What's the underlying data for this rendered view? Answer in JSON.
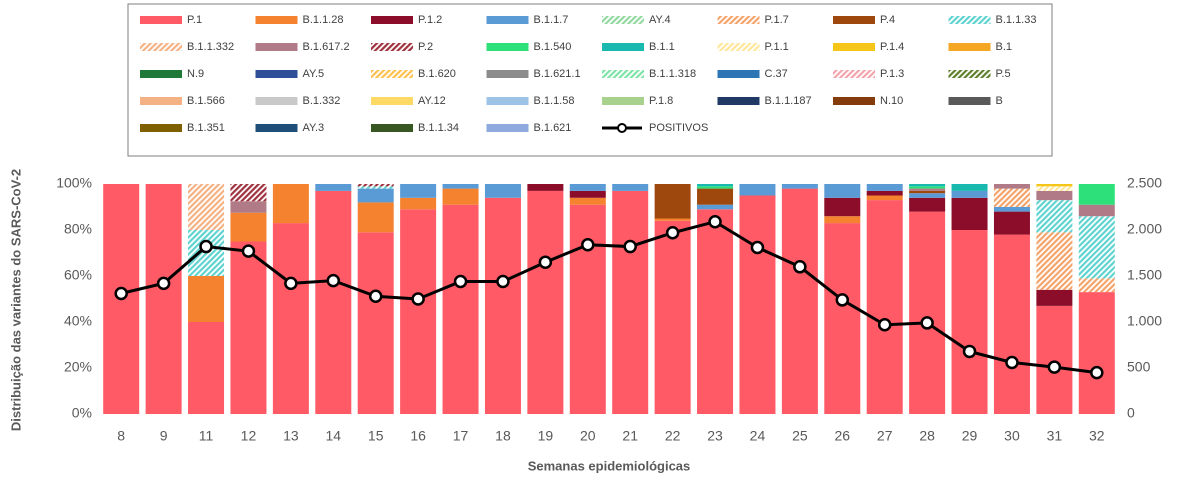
{
  "chart_data": {
    "type": "bar",
    "stacked": true,
    "y_title": "Distribuição das variantes do SARS-CoV-2",
    "x_title": "Semanas epidemiológicas",
    "categories": [
      "8",
      "9",
      "11",
      "12",
      "13",
      "14",
      "15",
      "16",
      "17",
      "18",
      "19",
      "20",
      "21",
      "22",
      "23",
      "24",
      "25",
      "26",
      "27",
      "28",
      "29",
      "30",
      "31",
      "32"
    ],
    "ylim": [
      0,
      100
    ],
    "yticks": [
      {
        "value": 0,
        "label": "0%"
      },
      {
        "value": 20,
        "label": "20%"
      },
      {
        "value": 40,
        "label": "40%"
      },
      {
        "value": 60,
        "label": "60%"
      },
      {
        "value": 80,
        "label": "80%"
      },
      {
        "value": 100,
        "label": "100%"
      }
    ],
    "y2lim": [
      0,
      2500
    ],
    "y2ticks": [
      0,
      500,
      {
        "value": 1000,
        "label": "1.000"
      },
      {
        "value": 1500,
        "label": "1.500"
      },
      {
        "value": 2000,
        "label": "2.000"
      },
      {
        "value": 2500,
        "label": "2.500"
      }
    ],
    "series": [
      {
        "name": "P.1",
        "color": "#ff5a65",
        "values": [
          100,
          100,
          40,
          75,
          83,
          97,
          79,
          89,
          91,
          94,
          97,
          91,
          97,
          84,
          89,
          95,
          98,
          83,
          93,
          88,
          80,
          78,
          47,
          53
        ]
      },
      {
        "name": "B.1.1.28",
        "color": "#f5822f",
        "values": [
          0,
          0,
          20,
          12.5,
          17,
          0,
          13,
          5,
          7,
          0,
          0,
          3,
          0,
          1,
          0,
          0,
          0,
          3,
          2,
          0,
          0,
          0,
          0,
          0
        ]
      },
      {
        "name": "P.1.2",
        "color": "#8b0d2a",
        "values": [
          0,
          0,
          0,
          0,
          0,
          0,
          0,
          0,
          0,
          0,
          3,
          3,
          0,
          0,
          0,
          0,
          0,
          8,
          2,
          6,
          14,
          10,
          7,
          0
        ]
      },
      {
        "name": "B.1.1.7",
        "color": "#5b9bd5",
        "values": [
          0,
          0,
          0,
          0,
          0,
          3,
          6,
          6,
          2,
          6,
          0,
          3,
          3,
          0,
          2,
          5,
          2,
          6,
          3,
          2,
          3,
          2,
          0,
          0
        ]
      },
      {
        "name": "AY.4",
        "color": "#92d9a0",
        "pattern": true,
        "values": [
          0,
          0,
          0,
          0,
          0,
          0,
          0,
          0,
          0,
          0,
          0,
          0,
          0,
          0,
          0,
          0,
          0,
          0,
          0,
          0,
          0,
          0,
          0,
          0
        ]
      },
      {
        "name": "P.1.7",
        "color": "#f4a46a",
        "pattern": true,
        "values": [
          0,
          0,
          0,
          0,
          0,
          0,
          0,
          0,
          0,
          0,
          0,
          0,
          0,
          0,
          0,
          0,
          0,
          0,
          0,
          0,
          0,
          8,
          25,
          6
        ]
      },
      {
        "name": "P.4",
        "color": "#9e480e",
        "values": [
          0,
          0,
          0,
          0,
          0,
          0,
          0,
          0,
          0,
          0,
          0,
          0,
          0,
          15,
          7,
          0,
          0,
          0,
          0,
          1,
          0,
          0,
          0,
          0
        ]
      },
      {
        "name": "B.1.1.33",
        "color": "#5fd3cf",
        "pattern": true,
        "values": [
          0,
          0,
          20,
          0,
          0,
          0,
          1,
          0,
          0,
          0,
          0,
          0,
          0,
          0,
          0,
          0,
          0,
          0,
          0,
          0,
          0,
          0,
          14,
          27
        ]
      },
      {
        "name": "B.1.1.332",
        "color": "#f4b183",
        "pattern": true,
        "values": [
          0,
          0,
          20,
          0,
          0,
          0,
          0,
          0,
          0,
          0,
          0,
          0,
          0,
          0,
          0,
          0,
          0,
          0,
          0,
          0,
          0,
          0,
          0,
          0
        ]
      },
      {
        "name": "B.1.617.2",
        "color": "#b07a86",
        "values": [
          0,
          0,
          0,
          5,
          0,
          0,
          0,
          0,
          0,
          0,
          0,
          0,
          0,
          0,
          0,
          0,
          0,
          0,
          0,
          1,
          0,
          2,
          4,
          5
        ]
      },
      {
        "name": "P.2",
        "color": "#a0313f",
        "pattern": true,
        "values": [
          0,
          0,
          0,
          7.5,
          0,
          0,
          1,
          0,
          0,
          0,
          0,
          0,
          0,
          0,
          0,
          0,
          0,
          0,
          0,
          0,
          0,
          0,
          0,
          0
        ]
      },
      {
        "name": "B.1.540",
        "color": "#2ee07a",
        "values": [
          0,
          0,
          0,
          0,
          0,
          0,
          0,
          0,
          0,
          0,
          0,
          0,
          0,
          0,
          1,
          0,
          0,
          0,
          0,
          1,
          0,
          0,
          0,
          9
        ]
      },
      {
        "name": "B.1.1",
        "color": "#1ab9b0",
        "values": [
          0,
          0,
          0,
          0,
          0,
          0,
          0,
          0,
          0,
          0,
          0,
          0,
          0,
          0,
          1,
          0,
          0,
          0,
          0,
          1,
          3,
          0,
          0,
          0
        ]
      },
      {
        "name": "P.1.1",
        "color": "#ffe699",
        "pattern": true,
        "values": [
          0,
          0,
          0,
          0,
          0,
          0,
          0,
          0,
          0,
          0,
          0,
          0,
          0,
          0,
          0,
          0,
          0,
          0,
          0,
          0,
          0,
          0,
          2,
          0
        ]
      },
      {
        "name": "P.1.4",
        "color": "#f5c518",
        "values": [
          0,
          0,
          0,
          0,
          0,
          0,
          0,
          0,
          0,
          0,
          0,
          0,
          0,
          0,
          0,
          0,
          0,
          0,
          0,
          0,
          0,
          0,
          1,
          0
        ]
      },
      {
        "name": "B.1",
        "color": "#f5a623",
        "values": [
          0,
          0,
          0,
          0,
          0,
          0,
          0,
          0,
          0,
          0,
          0,
          0,
          0,
          0,
          0,
          0,
          0,
          0,
          0,
          0,
          0,
          0,
          0,
          0
        ]
      },
      {
        "name": "N.9",
        "color": "#1f7a3a",
        "values": [
          0,
          0,
          0,
          0,
          0,
          0,
          0,
          0,
          0,
          0,
          0,
          0,
          0,
          0,
          0,
          0,
          0,
          0,
          0,
          0,
          0,
          0,
          0,
          0
        ]
      },
      {
        "name": "AY.5",
        "color": "#2f4f99",
        "values": [
          0,
          0,
          0,
          0,
          0,
          0,
          0,
          0,
          0,
          0,
          0,
          0,
          0,
          0,
          0,
          0,
          0,
          0,
          0,
          0,
          0,
          0,
          0,
          0
        ]
      },
      {
        "name": "B.1.620",
        "color": "#ffc04d",
        "pattern": true,
        "values": [
          0,
          0,
          0,
          0,
          0,
          0,
          0,
          0,
          0,
          0,
          0,
          0,
          0,
          0,
          0,
          0,
          0,
          0,
          0,
          0,
          0,
          0,
          0,
          0
        ]
      },
      {
        "name": "B.1.621.1",
        "color": "#8c8c8c",
        "values": [
          0,
          0,
          0,
          0,
          0,
          0,
          0,
          0,
          0,
          0,
          0,
          0,
          0,
          0,
          0,
          0,
          0,
          0,
          0,
          0,
          0,
          0,
          0,
          0
        ]
      },
      {
        "name": "B.1.1.318",
        "color": "#7de3a6",
        "pattern": true,
        "values": [
          0,
          0,
          0,
          0,
          0,
          0,
          0,
          0,
          0,
          0,
          0,
          0,
          0,
          0,
          0,
          0,
          0,
          0,
          0,
          0,
          0,
          0,
          0,
          0
        ]
      },
      {
        "name": "C.37",
        "color": "#2e75b6",
        "values": [
          0,
          0,
          0,
          0,
          0,
          0,
          0,
          0,
          0,
          0,
          0,
          0,
          0,
          0,
          0,
          0,
          0,
          0,
          0,
          0,
          0,
          0,
          0,
          0
        ]
      },
      {
        "name": "P.1.3",
        "color": "#f4a3ad",
        "pattern": true,
        "values": [
          0,
          0,
          0,
          0,
          0,
          0,
          0,
          0,
          0,
          0,
          0,
          0,
          0,
          0,
          0,
          0,
          0,
          0,
          0,
          0,
          0,
          0,
          0,
          0
        ]
      },
      {
        "name": "P.5",
        "color": "#5e7f2a",
        "pattern": true,
        "values": [
          0,
          0,
          0,
          0,
          0,
          0,
          0,
          0,
          0,
          0,
          0,
          0,
          0,
          0,
          0,
          0,
          0,
          0,
          0,
          0,
          0,
          0,
          0,
          0
        ]
      },
      {
        "name": "B.1.566",
        "color": "#f4b183",
        "values": [
          0,
          0,
          0,
          0,
          0,
          0,
          0,
          0,
          0,
          0,
          0,
          0,
          0,
          0,
          0,
          0,
          0,
          0,
          0,
          0,
          0,
          0,
          0,
          0
        ]
      },
      {
        "name": "B.1.332",
        "color": "#c9c9c9",
        "values": [
          0,
          0,
          0,
          0,
          0,
          0,
          0,
          0,
          0,
          0,
          0,
          0,
          0,
          0,
          0,
          0,
          0,
          0,
          0,
          0,
          0,
          0,
          0,
          0
        ]
      },
      {
        "name": "AY.12",
        "color": "#ffd966",
        "values": [
          0,
          0,
          0,
          0,
          0,
          0,
          0,
          0,
          0,
          0,
          0,
          0,
          0,
          0,
          0,
          0,
          0,
          0,
          0,
          0,
          0,
          0,
          0,
          0
        ]
      },
      {
        "name": "B.1.1.58",
        "color": "#9dc3e6",
        "values": [
          0,
          0,
          0,
          0,
          0,
          0,
          0,
          0,
          0,
          0,
          0,
          0,
          0,
          0,
          0,
          0,
          0,
          0,
          0,
          0,
          0,
          0,
          0,
          0
        ]
      },
      {
        "name": "P.1.8",
        "color": "#a9d18e",
        "values": [
          0,
          0,
          0,
          0,
          0,
          0,
          0,
          0,
          0,
          0,
          0,
          0,
          0,
          0,
          0,
          0,
          0,
          0,
          0,
          0,
          0,
          0,
          0,
          0
        ]
      },
      {
        "name": "B.1.1.187",
        "color": "#1f3864",
        "values": [
          0,
          0,
          0,
          0,
          0,
          0,
          0,
          0,
          0,
          0,
          0,
          0,
          0,
          0,
          0,
          0,
          0,
          0,
          0,
          0,
          0,
          0,
          0,
          0
        ]
      },
      {
        "name": "N.10",
        "color": "#843c0c",
        "values": [
          0,
          0,
          0,
          0,
          0,
          0,
          0,
          0,
          0,
          0,
          0,
          0,
          0,
          0,
          0,
          0,
          0,
          0,
          0,
          0,
          0,
          0,
          0,
          0
        ]
      },
      {
        "name": "B",
        "color": "#595959",
        "values": [
          0,
          0,
          0,
          0,
          0,
          0,
          0,
          0,
          0,
          0,
          0,
          0,
          0,
          0,
          0,
          0,
          0,
          0,
          0,
          0,
          0,
          0,
          0,
          0
        ]
      },
      {
        "name": "B.1.351",
        "color": "#7f6000",
        "values": [
          0,
          0,
          0,
          0,
          0,
          0,
          0,
          0,
          0,
          0,
          0,
          0,
          0,
          0,
          0,
          0,
          0,
          0,
          0,
          0,
          0,
          0,
          0,
          0
        ]
      },
      {
        "name": "AY.3",
        "color": "#1f4e79",
        "values": [
          0,
          0,
          0,
          0,
          0,
          0,
          0,
          0,
          0,
          0,
          0,
          0,
          0,
          0,
          0,
          0,
          0,
          0,
          0,
          0,
          0,
          0,
          0,
          0
        ]
      },
      {
        "name": "B.1.1.34",
        "color": "#385723",
        "values": [
          0,
          0,
          0,
          0,
          0,
          0,
          0,
          0,
          0,
          0,
          0,
          0,
          0,
          0,
          0,
          0,
          0,
          0,
          0,
          0,
          0,
          0,
          0,
          0
        ]
      },
      {
        "name": "B.1.621",
        "color": "#8faadc",
        "values": [
          0,
          0,
          0,
          0,
          0,
          0,
          0,
          0,
          0,
          0,
          0,
          0,
          0,
          0,
          0,
          0,
          0,
          0,
          0,
          0,
          0,
          0,
          0,
          0
        ]
      },
      {
        "name": "POSITIVOS",
        "type": "line",
        "axis": "y2",
        "color": "#000000",
        "values": [
          1310,
          1420,
          1820,
          1770,
          1420,
          1450,
          1280,
          1250,
          1440,
          1440,
          1650,
          1840,
          1820,
          1970,
          2090,
          1810,
          1600,
          1240,
          970,
          990,
          680,
          560,
          510,
          450
        ]
      }
    ]
  }
}
